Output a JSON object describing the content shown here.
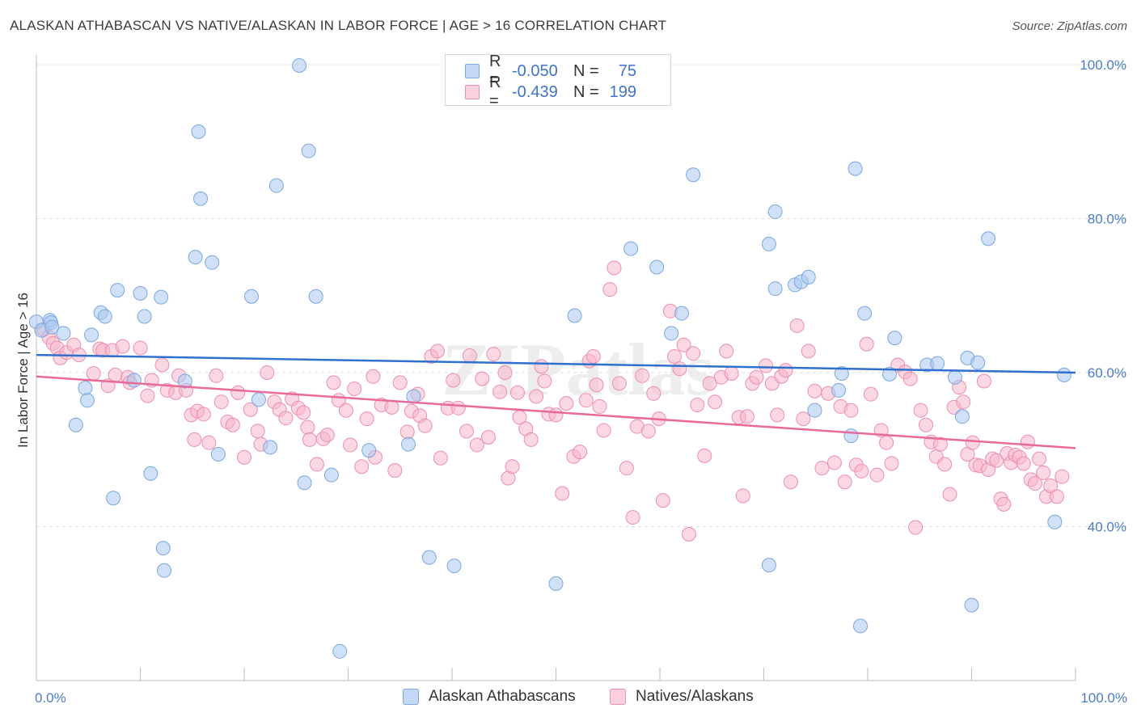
{
  "title": "ALASKAN ATHABASCAN VS NATIVE/ALASKAN IN LABOR FORCE | AGE > 16 CORRELATION CHART",
  "source": "Source: ZipAtlas.com",
  "watermark": "ZIPatlas",
  "legend": {
    "rows": [
      {
        "r_label": "R =",
        "r_value": "-0.050",
        "n_label": "N =",
        "n_value": "75",
        "color": "#a9c8f0"
      },
      {
        "r_label": "R =",
        "r_value": "-0.439",
        "n_label": "N =",
        "n_value": "199",
        "color": "#f7b6cb"
      }
    ]
  },
  "bottom_legend": {
    "series1": "Alaskan Athabascans",
    "series2": "Natives/Alaskans"
  },
  "chart_data": {
    "type": "scatter",
    "title": "ALASKAN ATHABASCAN VS NATIVE/ALASKAN IN LABOR FORCE | AGE > 16 CORRELATION CHART",
    "xlabel": "",
    "ylabel": "In Labor Force | Age > 16",
    "xlim": [
      0,
      100
    ],
    "ylim": [
      20,
      100
    ],
    "x_tick_labels": [
      "0.0%",
      "100.0%"
    ],
    "y_ticks": [
      40,
      60,
      80,
      100
    ],
    "y_tick_labels": [
      "40.0%",
      "60.0%",
      "80.0%",
      "100.0%"
    ],
    "grid": true,
    "legend_position": "top-center",
    "series": [
      {
        "name": "Alaskan Athabascans",
        "color": "#a9c8f0",
        "stroke": "#7aa7e0",
        "trend_color": "#2f6fd0",
        "trend": {
          "x": [
            0,
            100
          ],
          "y": [
            62.3,
            60.0
          ]
        },
        "points": [
          [
            0.0,
            66.6
          ],
          [
            0.5,
            65.5
          ],
          [
            1.3,
            66.8
          ],
          [
            1.4,
            66.5
          ],
          [
            1.5,
            65.9
          ],
          [
            2.6,
            65.1
          ],
          [
            3.8,
            53.2
          ],
          [
            4.7,
            58.0
          ],
          [
            4.9,
            56.4
          ],
          [
            5.3,
            64.9
          ],
          [
            6.2,
            67.8
          ],
          [
            6.6,
            67.3
          ],
          [
            7.4,
            43.7
          ],
          [
            7.8,
            70.7
          ],
          [
            9.4,
            59.0
          ],
          [
            10.0,
            70.3
          ],
          [
            10.4,
            67.3
          ],
          [
            11.0,
            46.9
          ],
          [
            12.0,
            69.8
          ],
          [
            12.2,
            37.2
          ],
          [
            12.3,
            34.3
          ],
          [
            14.3,
            58.9
          ],
          [
            15.3,
            75.0
          ],
          [
            15.6,
            91.3
          ],
          [
            15.8,
            82.6
          ],
          [
            16.9,
            74.3
          ],
          [
            17.5,
            49.4
          ],
          [
            20.7,
            69.9
          ],
          [
            21.4,
            56.5
          ],
          [
            22.5,
            50.3
          ],
          [
            23.1,
            84.3
          ],
          [
            25.3,
            99.9
          ],
          [
            25.8,
            45.7
          ],
          [
            26.2,
            88.8
          ],
          [
            26.9,
            69.9
          ],
          [
            28.4,
            46.7
          ],
          [
            29.2,
            23.8
          ],
          [
            32.0,
            49.9
          ],
          [
            35.8,
            50.7
          ],
          [
            36.3,
            56.9
          ],
          [
            37.8,
            36.0
          ],
          [
            40.2,
            34.9
          ],
          [
            50.0,
            32.6
          ],
          [
            51.8,
            67.4
          ],
          [
            57.2,
            76.1
          ],
          [
            59.7,
            73.7
          ],
          [
            61.1,
            65.1
          ],
          [
            62.1,
            67.7
          ],
          [
            63.2,
            85.7
          ],
          [
            70.5,
            35.0
          ],
          [
            70.5,
            76.7
          ],
          [
            71.1,
            70.9
          ],
          [
            71.1,
            80.9
          ],
          [
            73.0,
            71.4
          ],
          [
            73.6,
            71.8
          ],
          [
            74.3,
            72.4
          ],
          [
            74.9,
            55.1
          ],
          [
            77.2,
            57.7
          ],
          [
            77.5,
            59.9
          ],
          [
            78.4,
            51.8
          ],
          [
            78.8,
            86.5
          ],
          [
            79.3,
            27.1
          ],
          [
            79.7,
            67.7
          ],
          [
            82.1,
            59.8
          ],
          [
            82.6,
            64.5
          ],
          [
            85.7,
            61.0
          ],
          [
            86.7,
            61.2
          ],
          [
            88.4,
            59.4
          ],
          [
            89.1,
            54.3
          ],
          [
            89.6,
            61.9
          ],
          [
            90.0,
            29.8
          ],
          [
            90.6,
            61.3
          ],
          [
            91.6,
            77.4
          ],
          [
            98.0,
            40.6
          ],
          [
            98.9,
            59.7
          ]
        ]
      },
      {
        "name": "Natives/Alaskans",
        "color": "#f7b6cb",
        "stroke": "#ec8fae",
        "trend_color": "#e8699a",
        "trend": {
          "x": [
            0,
            100
          ],
          "y": [
            59.5,
            50.2
          ]
        },
        "points": [
          [
            0.7,
            65.6
          ],
          [
            1.2,
            64.6
          ],
          [
            1.6,
            63.8
          ],
          [
            2.0,
            63.2
          ],
          [
            2.3,
            61.9
          ],
          [
            2.9,
            62.6
          ],
          [
            3.6,
            63.6
          ],
          [
            4.1,
            62.3
          ],
          [
            5.5,
            59.9
          ],
          [
            6.1,
            63.1
          ],
          [
            6.4,
            62.9
          ],
          [
            6.9,
            58.3
          ],
          [
            7.3,
            62.9
          ],
          [
            7.6,
            59.7
          ],
          [
            8.3,
            63.4
          ],
          [
            8.8,
            59.4
          ],
          [
            9.0,
            58.7
          ],
          [
            10.0,
            63.2
          ],
          [
            10.7,
            57.0
          ],
          [
            11.1,
            59.0
          ],
          [
            12.1,
            61.0
          ],
          [
            12.6,
            57.7
          ],
          [
            13.4,
            57.4
          ],
          [
            13.7,
            59.6
          ],
          [
            14.4,
            57.7
          ],
          [
            14.9,
            54.5
          ],
          [
            15.2,
            51.3
          ],
          [
            15.5,
            55.0
          ],
          [
            16.1,
            54.6
          ],
          [
            16.6,
            50.9
          ],
          [
            17.3,
            59.6
          ],
          [
            17.8,
            56.2
          ],
          [
            18.4,
            53.6
          ],
          [
            18.9,
            53.2
          ],
          [
            19.4,
            57.4
          ],
          [
            20.0,
            49.0
          ],
          [
            20.6,
            55.2
          ],
          [
            21.3,
            52.4
          ],
          [
            21.6,
            50.7
          ],
          [
            22.2,
            60.0
          ],
          [
            22.9,
            56.2
          ],
          [
            23.4,
            55.2
          ],
          [
            24.0,
            54.1
          ],
          [
            24.6,
            56.6
          ],
          [
            25.2,
            55.4
          ],
          [
            25.7,
            54.8
          ],
          [
            26.1,
            52.9
          ],
          [
            26.3,
            51.3
          ],
          [
            27.0,
            48.1
          ],
          [
            27.6,
            51.4
          ],
          [
            28.0,
            51.9
          ],
          [
            28.6,
            58.7
          ],
          [
            29.1,
            56.4
          ],
          [
            29.8,
            55.1
          ],
          [
            30.2,
            50.6
          ],
          [
            30.6,
            57.9
          ],
          [
            31.3,
            47.8
          ],
          [
            31.8,
            54.0
          ],
          [
            32.4,
            59.5
          ],
          [
            32.6,
            49.0
          ],
          [
            33.2,
            55.8
          ],
          [
            34.2,
            55.5
          ],
          [
            34.5,
            47.3
          ],
          [
            35.0,
            58.7
          ],
          [
            35.7,
            52.3
          ],
          [
            36.1,
            55.0
          ],
          [
            36.7,
            57.2
          ],
          [
            36.9,
            54.4
          ],
          [
            37.4,
            53.1
          ],
          [
            38.0,
            62.1
          ],
          [
            38.6,
            62.8
          ],
          [
            38.9,
            48.9
          ],
          [
            39.6,
            55.4
          ],
          [
            40.1,
            59.0
          ],
          [
            40.6,
            55.4
          ],
          [
            41.4,
            52.4
          ],
          [
            41.7,
            62.2
          ],
          [
            42.4,
            50.6
          ],
          [
            42.9,
            59.2
          ],
          [
            43.5,
            51.6
          ],
          [
            44.0,
            62.4
          ],
          [
            44.6,
            57.5
          ],
          [
            45.1,
            60.0
          ],
          [
            45.4,
            46.3
          ],
          [
            45.8,
            47.8
          ],
          [
            46.3,
            57.4
          ],
          [
            46.5,
            54.2
          ],
          [
            47.1,
            52.7
          ],
          [
            47.6,
            51.3
          ],
          [
            48.1,
            56.9
          ],
          [
            48.6,
            60.8
          ],
          [
            48.9,
            58.9
          ],
          [
            49.3,
            54.6
          ],
          [
            50.0,
            54.5
          ],
          [
            50.6,
            44.3
          ],
          [
            51.0,
            56.0
          ],
          [
            51.7,
            49.1
          ],
          [
            52.3,
            49.7
          ],
          [
            52.9,
            56.4
          ],
          [
            53.2,
            61.5
          ],
          [
            53.6,
            62.1
          ],
          [
            53.9,
            58.4
          ],
          [
            54.2,
            55.6
          ],
          [
            54.6,
            52.5
          ],
          [
            55.2,
            70.8
          ],
          [
            55.6,
            73.6
          ],
          [
            56.1,
            58.6
          ],
          [
            56.8,
            47.6
          ],
          [
            57.4,
            41.2
          ],
          [
            57.8,
            53.0
          ],
          [
            58.3,
            59.6
          ],
          [
            58.9,
            52.4
          ],
          [
            59.4,
            57.3
          ],
          [
            59.9,
            54.0
          ],
          [
            60.3,
            43.4
          ],
          [
            61.0,
            68.0
          ],
          [
            61.4,
            62.1
          ],
          [
            61.9,
            60.5
          ],
          [
            62.3,
            63.6
          ],
          [
            62.8,
            39.0
          ],
          [
            63.2,
            62.5
          ],
          [
            63.6,
            55.8
          ],
          [
            64.3,
            49.2
          ],
          [
            64.8,
            58.6
          ],
          [
            65.3,
            56.2
          ],
          [
            65.9,
            59.4
          ],
          [
            66.4,
            62.8
          ],
          [
            66.9,
            59.9
          ],
          [
            67.6,
            54.2
          ],
          [
            68.0,
            44.0
          ],
          [
            68.4,
            54.3
          ],
          [
            68.9,
            58.6
          ],
          [
            69.3,
            59.4
          ],
          [
            70.2,
            60.9
          ],
          [
            70.8,
            58.6
          ],
          [
            71.3,
            54.5
          ],
          [
            71.7,
            59.5
          ],
          [
            72.1,
            60.3
          ],
          [
            72.6,
            45.8
          ],
          [
            73.2,
            66.1
          ],
          [
            73.8,
            54.0
          ],
          [
            74.3,
            62.8
          ],
          [
            74.9,
            57.6
          ],
          [
            75.6,
            47.6
          ],
          [
            76.2,
            57.3
          ],
          [
            76.8,
            48.3
          ],
          [
            77.4,
            55.6
          ],
          [
            77.8,
            45.8
          ],
          [
            78.4,
            55.1
          ],
          [
            78.9,
            48.0
          ],
          [
            79.4,
            47.2
          ],
          [
            79.9,
            63.7
          ],
          [
            80.3,
            57.2
          ],
          [
            80.9,
            46.7
          ],
          [
            81.3,
            52.5
          ],
          [
            81.8,
            50.9
          ],
          [
            82.3,
            48.2
          ],
          [
            82.9,
            61.0
          ],
          [
            83.6,
            60.1
          ],
          [
            84.1,
            59.2
          ],
          [
            84.6,
            39.9
          ],
          [
            85.1,
            55.1
          ],
          [
            85.6,
            53.2
          ],
          [
            86.1,
            51.0
          ],
          [
            86.6,
            49.1
          ],
          [
            87.0,
            50.7
          ],
          [
            87.4,
            48.1
          ],
          [
            87.9,
            44.2
          ],
          [
            88.3,
            55.5
          ],
          [
            88.8,
            58.1
          ],
          [
            89.2,
            56.2
          ],
          [
            89.6,
            49.4
          ],
          [
            90.1,
            50.9
          ],
          [
            90.4,
            48.0
          ],
          [
            90.8,
            47.9
          ],
          [
            91.2,
            58.9
          ],
          [
            91.6,
            47.4
          ],
          [
            92.0,
            48.8
          ],
          [
            92.4,
            48.6
          ],
          [
            92.8,
            43.6
          ],
          [
            93.1,
            42.9
          ],
          [
            93.4,
            49.5
          ],
          [
            93.8,
            48.3
          ],
          [
            94.2,
            49.3
          ],
          [
            94.6,
            49.0
          ],
          [
            95.0,
            48.2
          ],
          [
            95.4,
            51.0
          ],
          [
            95.7,
            46.1
          ],
          [
            96.1,
            45.6
          ],
          [
            96.5,
            48.8
          ],
          [
            96.9,
            47.0
          ],
          [
            97.2,
            43.9
          ],
          [
            97.6,
            45.3
          ],
          [
            98.2,
            43.9
          ],
          [
            98.7,
            46.5
          ]
        ]
      }
    ]
  }
}
